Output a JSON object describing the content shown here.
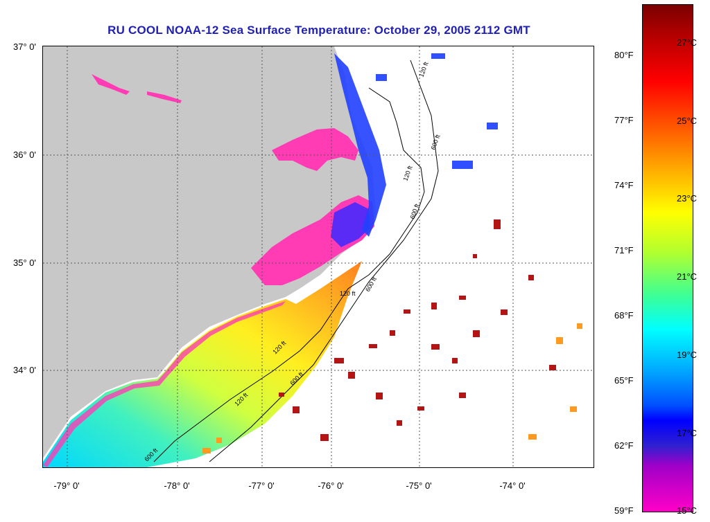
{
  "title": "RU COOL  NOAA-12  Sea Surface Temperature:  October 29, 2005 2112 GMT",
  "map": {
    "latitudes": [
      "37° 0'",
      "36° 0'",
      "35° 0'",
      "34° 0'"
    ],
    "longitudes": [
      "-79° 0'",
      "-78° 0'",
      "-77° 0'",
      "-76° 0'",
      "-75° 0'",
      "-74° 0'"
    ],
    "isobath_labels": [
      "120 ft",
      "600 ft",
      "120 ft",
      "600 ft",
      "120 ft",
      "600 ft",
      "120 ft",
      "600 ft",
      "120 ft",
      "600 ft"
    ]
  },
  "colorbar": {
    "fahrenheit": [
      "80°F",
      "77°F",
      "74°F",
      "71°F",
      "68°F",
      "65°F",
      "62°F",
      "59°F"
    ],
    "celsius": [
      "27°C",
      "25°C",
      "23°C",
      "21°C",
      "19°C",
      "17°C",
      "15°C"
    ]
  },
  "colors": {
    "title": "#1f1fb4",
    "land": "#c8c8c8",
    "estuary": "#ff3cb4",
    "nearshore_cold": "#1e3cff",
    "shelf_mid": "#ffee20",
    "offshore_warm": "#b41414"
  }
}
